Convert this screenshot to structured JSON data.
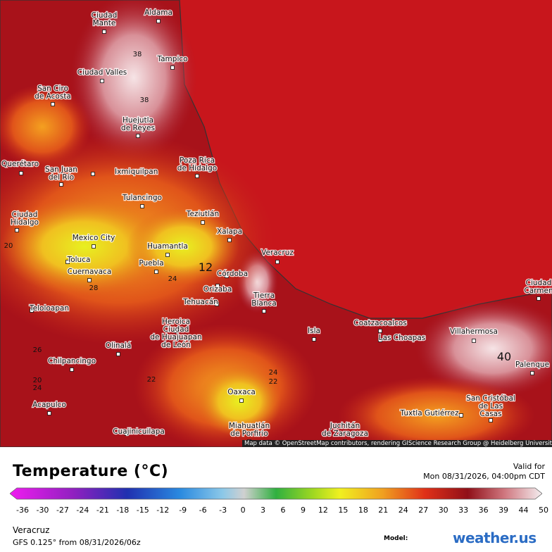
{
  "map": {
    "cities": [
      {
        "lines": [
          "Ciudad",
          "Mante"
        ]
      },
      {
        "lines": [
          "Aldama"
        ]
      },
      {
        "lines": [
          "Tampico"
        ]
      },
      {
        "lines": [
          "Ciudad Valles"
        ]
      },
      {
        "lines": [
          "San Ciro",
          "de Acosta"
        ]
      },
      {
        "lines": [
          "Huejutla",
          "de Reyes"
        ]
      },
      {
        "lines": [
          "Poza Rica",
          "de Hidalgo"
        ]
      },
      {
        "lines": [
          "San Juan",
          "del Río"
        ]
      },
      {
        "lines": [
          "Ixmiquilpan"
        ]
      },
      {
        "lines": [
          "Querétaro"
        ]
      },
      {
        "lines": [
          "Tulancingo"
        ]
      },
      {
        "lines": [
          "Teziutlán"
        ]
      },
      {
        "lines": [
          "Xalapa"
        ]
      },
      {
        "lines": [
          "Ciudad",
          "Hidalgo"
        ]
      },
      {
        "lines": [
          "Mexico City"
        ]
      },
      {
        "lines": [
          "Huamantla"
        ]
      },
      {
        "lines": [
          "Toluca"
        ]
      },
      {
        "lines": [
          "Cuernavaca"
        ]
      },
      {
        "lines": [
          "Puebla"
        ]
      },
      {
        "lines": [
          "Veracruz"
        ]
      },
      {
        "lines": [
          "Córdoba"
        ]
      },
      {
        "lines": [
          "Orizaba"
        ]
      },
      {
        "lines": [
          "Tehuacán"
        ]
      },
      {
        "lines": [
          "Tierra",
          "Blanca"
        ]
      },
      {
        "lines": [
          "Teloloapan"
        ]
      },
      {
        "lines": [
          "Heroica",
          "Ciudad",
          "de Huajuapan",
          "de León"
        ]
      },
      {
        "lines": [
          "Olinalá"
        ]
      },
      {
        "lines": [
          "Chilpancingo"
        ]
      },
      {
        "lines": [
          "Isla"
        ]
      },
      {
        "lines": [
          "Coatzacoalcos"
        ]
      },
      {
        "lines": [
          "Las Choapas"
        ]
      },
      {
        "lines": [
          "Villahermosa"
        ]
      },
      {
        "lines": [
          "Palenque"
        ]
      },
      {
        "lines": [
          "Acapulco"
        ]
      },
      {
        "lines": [
          "Oaxaca"
        ]
      },
      {
        "lines": [
          "Cuajinicuilapa"
        ]
      },
      {
        "lines": [
          "Miahuatlán",
          "de Porfirio"
        ]
      },
      {
        "lines": [
          "Juchitán",
          "de Zaragoza"
        ]
      },
      {
        "lines": [
          "Tuxtla Gutiérrez"
        ]
      },
      {
        "lines": [
          "San Cristóbal",
          "de Las",
          "Casas"
        ]
      },
      {
        "lines": [
          "Ciudad",
          "Carmen"
        ]
      }
    ],
    "contour_labels": [
      "38",
      "38",
      "12",
      "24",
      "26",
      "22",
      "20",
      "24",
      "24",
      "22",
      "40",
      "28",
      "20"
    ],
    "attribution": "Map data © OpenStreetMap contributors, rendering GIScience Research Group @ Heidelberg University"
  },
  "legend": {
    "title": "Temperature (°C)",
    "valid_label": "Valid for",
    "valid_time": "Mon 08/31/2026, 04:00pm CDT",
    "ticks": [
      -36,
      -30,
      -27,
      -24,
      -21,
      -18,
      -15,
      -12,
      -9,
      -6,
      -3,
      0,
      3,
      6,
      9,
      12,
      15,
      18,
      21,
      24,
      27,
      30,
      33,
      36,
      39,
      44,
      50
    ]
  },
  "footer": {
    "location": "Veracruz",
    "model_run": "GFS 0.125° from 08/31/2026/06z",
    "model_label": "Model:",
    "brand": "weather.us"
  }
}
